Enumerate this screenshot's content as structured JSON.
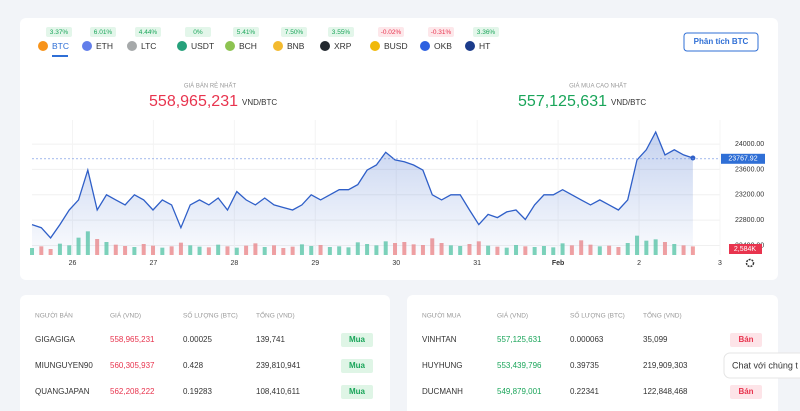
{
  "coins": [
    {
      "symbol": "BTC",
      "change": "3.37%",
      "color": "#f7931a"
    },
    {
      "symbol": "ETH",
      "change": "6.01%",
      "color": "#627eea"
    },
    {
      "symbol": "LTC",
      "change": "4.44%",
      "color": "#a6a9aa"
    },
    {
      "symbol": "USDT",
      "change": "0%",
      "color": "#26a17b"
    },
    {
      "symbol": "BCH",
      "change": "5.41%",
      "color": "#8dc351"
    },
    {
      "symbol": "BNB",
      "change": "7.50%",
      "color": "#f3ba2f"
    },
    {
      "symbol": "XRP",
      "change": "3.55%",
      "color": "#23292f"
    },
    {
      "symbol": "BUSD",
      "change": "-0.02%",
      "color": "#f0b90b"
    },
    {
      "symbol": "OKB",
      "change": "-0.31%",
      "color": "#2d60e0"
    },
    {
      "symbol": "HT",
      "change": "3.36%",
      "color": "#1b3b8b"
    }
  ],
  "analyze_button": "Phân tích BTC",
  "sell": {
    "label": "GIÁ BÁN RẺ NHẤT",
    "price": "558,965,231",
    "unit": "VND/BTC"
  },
  "buy": {
    "label": "GIÁ MUA CAO NHẤT",
    "price": "557,125,631",
    "unit": "VND/BTC"
  },
  "chart_data": {
    "type": "line",
    "x": [
      25.5,
      25.615,
      25.73,
      25.845,
      25.96,
      26.075,
      26.19,
      26.305,
      26.42,
      26.535,
      26.65,
      26.765,
      26.88,
      26.995,
      27.11,
      27.225,
      27.34,
      27.455,
      27.57,
      27.685,
      27.8,
      27.915,
      28.03,
      28.145,
      28.26,
      28.375,
      28.49,
      28.605,
      28.72,
      28.835,
      28.95,
      29.065,
      29.18,
      29.295,
      29.41,
      29.525,
      29.64,
      29.755,
      29.87,
      29.985,
      30.1,
      30.215,
      30.33,
      30.445,
      30.56,
      30.675,
      30.79,
      30.905,
      31.02,
      31.135,
      31.25,
      31.365,
      31.48,
      31.595,
      31.71,
      31.825,
      31.94,
      32.055,
      32.17,
      32.285,
      32.4,
      32.515,
      32.63,
      32.745,
      32.86,
      32.975,
      33.09,
      33.205,
      33.32,
      33.435,
      33.55,
      33.665
    ],
    "series": [
      {
        "color": "#2f5fc8",
        "values": [
          22730,
          22680,
          22520,
          22730,
          22960,
          23120,
          23590,
          22960,
          23200,
          23120,
          23040,
          23200,
          23120,
          22960,
          23120,
          23040,
          22680,
          23040,
          23120,
          23040,
          23150,
          22960,
          23250,
          23120,
          23040,
          23150,
          23040,
          23000,
          22960,
          23040,
          23200,
          23120,
          23200,
          23280,
          23280,
          23360,
          23590,
          23670,
          23870,
          23750,
          23720,
          23670,
          23590,
          23200,
          23120,
          23200,
          23200,
          22960,
          22730,
          22890,
          22840,
          22930,
          22960,
          22810,
          23040,
          23200,
          23200,
          23280,
          23200,
          23120,
          23040,
          23120,
          23040,
          22960,
          23120,
          23750,
          23910,
          24190,
          23830,
          23910,
          23830,
          23780
        ]
      },
      {
        "axis": "y2",
        "values": [
          2100,
          2600,
          1800,
          3400,
          2900,
          5200,
          7100,
          4800,
          3900,
          3100,
          2700,
          2400,
          3300,
          2800,
          2200,
          2600,
          3700,
          2900,
          2500,
          2300,
          3100,
          2600,
          2200,
          2800,
          3500,
          2400,
          2900,
          2100,
          2500,
          3200,
          2700,
          3000,
          2400,
          2600,
          2300,
          3800,
          3300,
          2900,
          4100,
          3600,
          3900,
          3200,
          3000,
          5000,
          3600,
          2900,
          2700,
          3300,
          4100,
          2800,
          2500,
          2200,
          3000,
          2600,
          2400,
          2700,
          2300,
          3500,
          2900,
          4400,
          3100,
          2600,
          2800,
          2400,
          3600,
          5800,
          4300,
          4700,
          3900,
          3300,
          2900,
          2584
        ]
      }
    ],
    "xlim": [
      25.5,
      34
    ],
    "xticks": [
      26,
      27,
      28,
      29,
      30,
      31,
      {
        "value": 32,
        "label": "Feb"
      },
      {
        "value": 33,
        "label": "2"
      },
      {
        "value": 34,
        "label": "3"
      }
    ],
    "ylim": [
      22250,
      24380
    ],
    "yticks": [
      {
        "value": 22400,
        "label": "22400.00"
      },
      {
        "value": 22800,
        "label": "22800.00"
      },
      {
        "value": 23200,
        "label": "23200.00"
      },
      {
        "value": 23600,
        "label": "23600.00"
      },
      {
        "value": 24000,
        "label": "24000.00"
      }
    ],
    "y2lim": [
      0,
      12000
    ],
    "last_price": 23767.92,
    "last_volume_label": "2,584K",
    "up_color": "#5cc9a7",
    "down_color": "#f08a8a"
  },
  "sellers": {
    "headers": [
      "NGƯỜI BÁN",
      "GIÁ (VND)",
      "SỐ LƯỢNG (BTC)",
      "TỔNG (VND)"
    ],
    "rows": [
      [
        "GIGAGIGA",
        "558,965,231",
        "0.00025",
        "139,741",
        "Mua"
      ],
      [
        "MIUNGUYEN90",
        "560,305,937",
        "0.428",
        "239,810,941",
        "Mua"
      ],
      [
        "QUANGJAPAN",
        "562,208,222",
        "0.19283",
        "108,410,611",
        "Mua"
      ]
    ]
  },
  "buyers": {
    "headers": [
      "NGƯỜI MUA",
      "GIÁ (VND)",
      "SỐ LƯỢNG (BTC)",
      "TỔNG (VND)"
    ],
    "rows": [
      [
        "VINHTAN",
        "557,125,631",
        "0.000063",
        "35,099",
        "Bán"
      ],
      [
        "HUYHUNG",
        "553,439,796",
        "0.39735",
        "219,909,303",
        "Bán"
      ],
      [
        "DUCMANH",
        "549,879,001",
        "0.22341",
        "122,848,468",
        "Bán"
      ]
    ]
  },
  "chat": "Chat với chúng t"
}
